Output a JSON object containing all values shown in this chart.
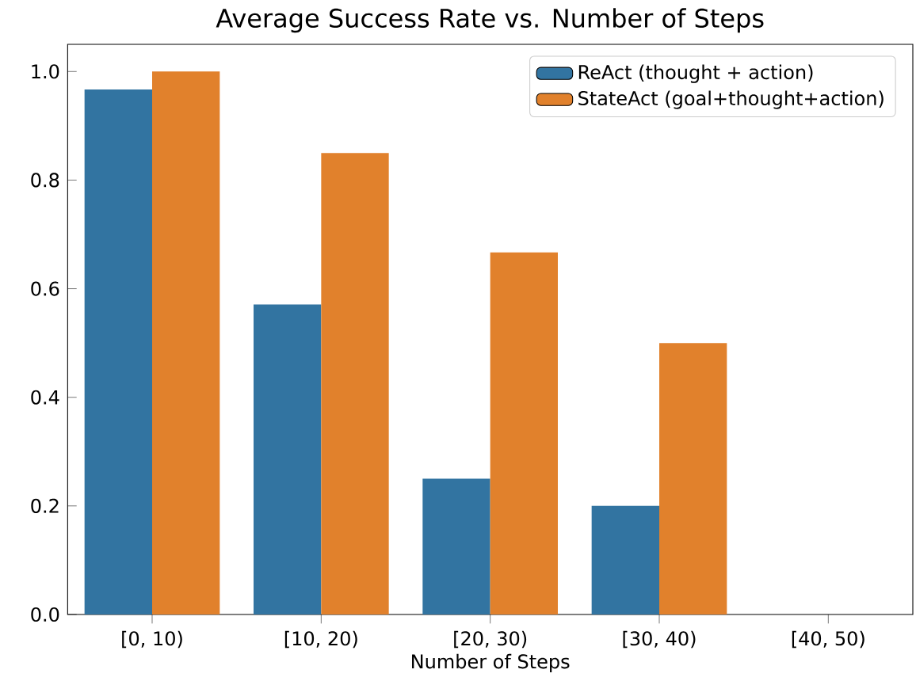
{
  "chart_data": {
    "type": "bar",
    "title": "Average Success Rate vs. Number of Steps",
    "xlabel": "Number of Steps",
    "categories": [
      "[0, 10)",
      "[10, 20)",
      "[20, 30)",
      "[30, 40)",
      "[40, 50)"
    ],
    "series": [
      {
        "name": "ReAct (thought + action)",
        "color": "#3274a1",
        "values": [
          0.967,
          0.571,
          0.25,
          0.2,
          0
        ]
      },
      {
        "name": "StateAct (goal+thought+action)",
        "color": "#e1812c",
        "values": [
          1.0,
          0.85,
          0.667,
          0.5,
          0
        ]
      }
    ],
    "ylim": [
      0,
      1.05
    ],
    "yticks": [
      {
        "value": 0,
        "label": "0.0"
      },
      {
        "value": 0.2,
        "label": "0.2"
      },
      {
        "value": 0.4,
        "label": "0.4"
      },
      {
        "value": 0.6,
        "label": "0.6"
      },
      {
        "value": 0.8,
        "label": "0.8"
      },
      {
        "value": 1.0,
        "label": "1.0"
      }
    ],
    "grid": false,
    "legend": "top right"
  }
}
